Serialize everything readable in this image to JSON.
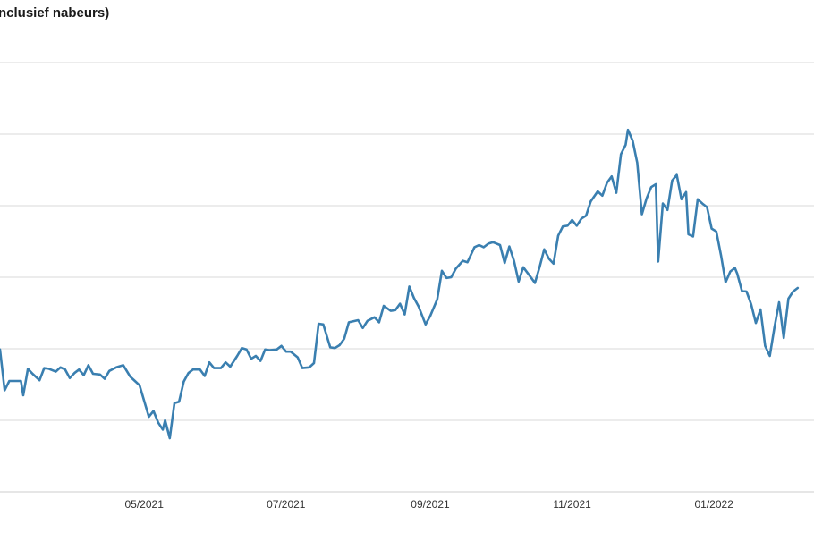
{
  "title_fragment": "nclusief nabeurs)",
  "colors": {
    "line": "#3a7fb0",
    "grid": "#d9d9d9",
    "axis": "#cccccc",
    "text": "#333333"
  },
  "chart_data": {
    "type": "line",
    "title": "nclusief nabeurs)",
    "xlabel": "",
    "ylabel": "",
    "x_ticks": [
      {
        "date": "2021-05-01",
        "label": "05/2021"
      },
      {
        "date": "2021-07-01",
        "label": "07/2021"
      },
      {
        "date": "2021-09-01",
        "label": "09/2021"
      },
      {
        "date": "2021-11-01",
        "label": "11/2021"
      },
      {
        "date": "2022-01-01",
        "label": "01/2022"
      }
    ],
    "xlim": [
      "2021-02-28",
      "2022-02-13"
    ],
    "ylim": [
      0,
      6
    ],
    "gridlines_y": [
      1,
      2,
      3,
      4,
      5,
      6
    ],
    "grid": true,
    "y_tick_labels_visible": false,
    "series": [
      {
        "points": [
          [
            "2021-02-28",
            1.99
          ],
          [
            "2021-03-02",
            1.42
          ],
          [
            "2021-03-04",
            1.55
          ],
          [
            "2021-03-06",
            1.55
          ],
          [
            "2021-03-09",
            1.55
          ],
          [
            "2021-03-10",
            1.35
          ],
          [
            "2021-03-12",
            1.72
          ],
          [
            "2021-03-14",
            1.65
          ],
          [
            "2021-03-17",
            1.56
          ],
          [
            "2021-03-19",
            1.73
          ],
          [
            "2021-03-21",
            1.72
          ],
          [
            "2021-03-24",
            1.68
          ],
          [
            "2021-03-26",
            1.74
          ],
          [
            "2021-03-28",
            1.71
          ],
          [
            "2021-03-30",
            1.59
          ],
          [
            "2021-04-01",
            1.66
          ],
          [
            "2021-04-03",
            1.71
          ],
          [
            "2021-04-05",
            1.63
          ],
          [
            "2021-04-07",
            1.77
          ],
          [
            "2021-04-09",
            1.65
          ],
          [
            "2021-04-12",
            1.64
          ],
          [
            "2021-04-14",
            1.58
          ],
          [
            "2021-04-16",
            1.69
          ],
          [
            "2021-04-19",
            1.74
          ],
          [
            "2021-04-22",
            1.77
          ],
          [
            "2021-04-25",
            1.61
          ],
          [
            "2021-04-27",
            1.55
          ],
          [
            "2021-04-29",
            1.49
          ],
          [
            "2021-05-03",
            1.05
          ],
          [
            "2021-05-05",
            1.13
          ],
          [
            "2021-05-07",
            0.97
          ],
          [
            "2021-05-09",
            0.87
          ],
          [
            "2021-05-10",
            1.0
          ],
          [
            "2021-05-12",
            0.75
          ],
          [
            "2021-05-14",
            1.24
          ],
          [
            "2021-05-16",
            1.26
          ],
          [
            "2021-05-18",
            1.54
          ],
          [
            "2021-05-20",
            1.66
          ],
          [
            "2021-05-22",
            1.71
          ],
          [
            "2021-05-25",
            1.71
          ],
          [
            "2021-05-27",
            1.62
          ],
          [
            "2021-05-29",
            1.81
          ],
          [
            "2021-05-31",
            1.73
          ],
          [
            "2021-06-03",
            1.73
          ],
          [
            "2021-06-05",
            1.81
          ],
          [
            "2021-06-07",
            1.75
          ],
          [
            "2021-06-10",
            1.9
          ],
          [
            "2021-06-12",
            2.01
          ],
          [
            "2021-06-14",
            1.99
          ],
          [
            "2021-06-16",
            1.86
          ],
          [
            "2021-06-18",
            1.9
          ],
          [
            "2021-06-20",
            1.83
          ],
          [
            "2021-06-22",
            1.99
          ],
          [
            "2021-06-24",
            1.98
          ],
          [
            "2021-06-27",
            1.99
          ],
          [
            "2021-06-29",
            2.04
          ],
          [
            "2021-07-01",
            1.96
          ],
          [
            "2021-07-03",
            1.96
          ],
          [
            "2021-07-06",
            1.88
          ],
          [
            "2021-07-08",
            1.73
          ],
          [
            "2021-07-11",
            1.74
          ],
          [
            "2021-07-13",
            1.8
          ],
          [
            "2021-07-15",
            2.35
          ],
          [
            "2021-07-17",
            2.34
          ],
          [
            "2021-07-20",
            2.02
          ],
          [
            "2021-07-22",
            2.01
          ],
          [
            "2021-07-24",
            2.05
          ],
          [
            "2021-07-26",
            2.14
          ],
          [
            "2021-07-28",
            2.37
          ],
          [
            "2021-08-01",
            2.4
          ],
          [
            "2021-08-03",
            2.29
          ],
          [
            "2021-08-05",
            2.39
          ],
          [
            "2021-08-08",
            2.44
          ],
          [
            "2021-08-10",
            2.37
          ],
          [
            "2021-08-12",
            2.6
          ],
          [
            "2021-08-15",
            2.53
          ],
          [
            "2021-08-17",
            2.54
          ],
          [
            "2021-08-19",
            2.63
          ],
          [
            "2021-08-21",
            2.48
          ],
          [
            "2021-08-23",
            2.87
          ],
          [
            "2021-08-25",
            2.71
          ],
          [
            "2021-08-27",
            2.59
          ],
          [
            "2021-08-30",
            2.34
          ],
          [
            "2021-09-01",
            2.46
          ],
          [
            "2021-09-04",
            2.69
          ],
          [
            "2021-09-06",
            3.09
          ],
          [
            "2021-09-08",
            2.99
          ],
          [
            "2021-09-10",
            3.0
          ],
          [
            "2021-09-12",
            3.12
          ],
          [
            "2021-09-15",
            3.23
          ],
          [
            "2021-09-17",
            3.21
          ],
          [
            "2021-09-20",
            3.42
          ],
          [
            "2021-09-22",
            3.45
          ],
          [
            "2021-09-24",
            3.42
          ],
          [
            "2021-09-26",
            3.47
          ],
          [
            "2021-09-28",
            3.49
          ],
          [
            "2021-10-01",
            3.45
          ],
          [
            "2021-10-03",
            3.2
          ],
          [
            "2021-10-05",
            3.43
          ],
          [
            "2021-10-07",
            3.23
          ],
          [
            "2021-10-09",
            2.94
          ],
          [
            "2021-10-11",
            3.14
          ],
          [
            "2021-10-14",
            3.01
          ],
          [
            "2021-10-16",
            2.92
          ],
          [
            "2021-10-18",
            3.14
          ],
          [
            "2021-10-20",
            3.39
          ],
          [
            "2021-10-22",
            3.26
          ],
          [
            "2021-10-24",
            3.19
          ],
          [
            "2021-10-26",
            3.58
          ],
          [
            "2021-10-28",
            3.71
          ],
          [
            "2021-10-30",
            3.72
          ],
          [
            "2021-11-01",
            3.8
          ],
          [
            "2021-11-03",
            3.72
          ],
          [
            "2021-11-05",
            3.82
          ],
          [
            "2021-11-07",
            3.86
          ],
          [
            "2021-11-09",
            4.06
          ],
          [
            "2021-11-12",
            4.2
          ],
          [
            "2021-11-14",
            4.14
          ],
          [
            "2021-11-16",
            4.32
          ],
          [
            "2021-11-18",
            4.41
          ],
          [
            "2021-11-20",
            4.18
          ],
          [
            "2021-11-22",
            4.72
          ],
          [
            "2021-11-24",
            4.85
          ],
          [
            "2021-11-25",
            5.06
          ],
          [
            "2021-11-27",
            4.91
          ],
          [
            "2021-11-29",
            4.6
          ],
          [
            "2021-12-01",
            3.88
          ],
          [
            "2021-12-03",
            4.1
          ],
          [
            "2021-12-05",
            4.26
          ],
          [
            "2021-12-07",
            4.3
          ],
          [
            "2021-12-08",
            3.22
          ],
          [
            "2021-12-10",
            4.03
          ],
          [
            "2021-12-12",
            3.94
          ],
          [
            "2021-12-14",
            4.35
          ],
          [
            "2021-12-16",
            4.43
          ],
          [
            "2021-12-18",
            4.09
          ],
          [
            "2021-12-20",
            4.19
          ],
          [
            "2021-12-21",
            3.6
          ],
          [
            "2021-12-23",
            3.57
          ],
          [
            "2021-12-25",
            4.09
          ],
          [
            "2021-12-27",
            4.03
          ],
          [
            "2021-12-29",
            3.98
          ],
          [
            "2021-12-31",
            3.68
          ],
          [
            "2022-01-02",
            3.64
          ],
          [
            "2022-01-04",
            3.31
          ],
          [
            "2022-01-06",
            2.93
          ],
          [
            "2022-01-08",
            3.08
          ],
          [
            "2022-01-10",
            3.13
          ],
          [
            "2022-01-11",
            3.05
          ],
          [
            "2022-01-13",
            2.81
          ],
          [
            "2022-01-15",
            2.8
          ],
          [
            "2022-01-17",
            2.62
          ],
          [
            "2022-01-19",
            2.36
          ],
          [
            "2022-01-21",
            2.55
          ],
          [
            "2022-01-23",
            2.04
          ],
          [
            "2022-01-25",
            1.9
          ],
          [
            "2022-01-27",
            2.3
          ],
          [
            "2022-01-29",
            2.65
          ],
          [
            "2022-01-31",
            2.15
          ],
          [
            "2022-02-02",
            2.7
          ],
          [
            "2022-02-04",
            2.8
          ],
          [
            "2022-02-06",
            2.85
          ]
        ]
      }
    ]
  }
}
